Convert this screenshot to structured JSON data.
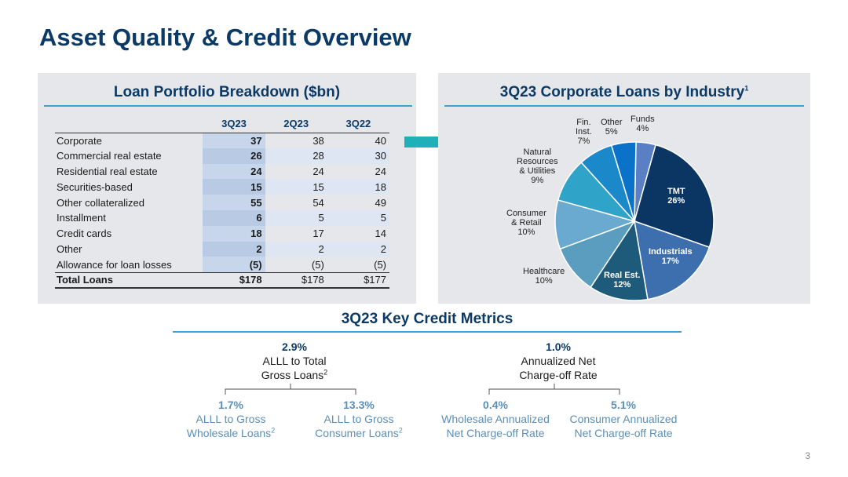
{
  "title": "Asset Quality & Credit Overview",
  "loans": {
    "title": "Loan Portfolio Breakdown ($bn)",
    "columns": [
      "3Q23",
      "2Q23",
      "3Q22"
    ],
    "rows": [
      {
        "label": "Corporate",
        "values": [
          "37",
          "38",
          "40"
        ]
      },
      {
        "label": "Commercial real estate",
        "values": [
          "26",
          "28",
          "30"
        ]
      },
      {
        "label": "Residential real estate",
        "values": [
          "24",
          "24",
          "24"
        ]
      },
      {
        "label": "Securities-based",
        "values": [
          "15",
          "15",
          "18"
        ]
      },
      {
        "label": "Other collateralized",
        "values": [
          "55",
          "54",
          "49"
        ]
      },
      {
        "label": "Installment",
        "values": [
          "6",
          "5",
          "5"
        ]
      },
      {
        "label": "Credit cards",
        "values": [
          "18",
          "17",
          "14"
        ]
      },
      {
        "label": "Other",
        "values": [
          "2",
          "2",
          "2"
        ]
      },
      {
        "label": "Allowance for loan losses",
        "values": [
          "(5)",
          "(5)",
          "(5)"
        ]
      },
      {
        "label": "Total Loans",
        "values": [
          "$178",
          "$178",
          "$177"
        ]
      }
    ]
  },
  "industry": {
    "title": "3Q23 Corporate Loans by Industry",
    "title_sup": "1"
  },
  "chart_data": {
    "type": "pie",
    "title": "3Q23 Corporate Loans by Industry",
    "slices": [
      {
        "label": "Funds",
        "value": 4,
        "color": "#5b7fc4"
      },
      {
        "label": "TMT",
        "value": 26,
        "color": "#0b3562"
      },
      {
        "label": "Industrials",
        "value": 17,
        "color": "#3d6faf"
      },
      {
        "label": "Real Est.",
        "value": 12,
        "color": "#1e5a7a"
      },
      {
        "label": "Healthcare",
        "value": 10,
        "color": "#5b9dbf"
      },
      {
        "label": "Consumer & Retail",
        "value": 10,
        "color": "#6aaad0"
      },
      {
        "label": "Natural Resources & Utilities",
        "value": 9,
        "color": "#2fa3c8"
      },
      {
        "label": "Fin. Inst.",
        "value": 7,
        "color": "#1b88c9"
      },
      {
        "label": "Other",
        "value": 5,
        "color": "#0a72c9"
      }
    ],
    "display_labels": {
      "funds": [
        "Funds",
        "4%"
      ],
      "tmt": [
        "TMT",
        "26%"
      ],
      "industrials": [
        "Industrials",
        "17%"
      ],
      "realest": [
        "Real Est.",
        "12%"
      ],
      "healthcare": [
        "Healthcare",
        "10%"
      ],
      "consumer": [
        "Consumer",
        "& Retail",
        "10%"
      ],
      "natural": [
        "Natural",
        "Resources",
        "& Utilities",
        "9%"
      ],
      "fin": [
        "Fin.",
        "Inst.",
        "7%"
      ],
      "other": [
        "Other",
        "5%"
      ]
    }
  },
  "metrics": {
    "title": "3Q23 Key Credit Metrics",
    "allll_total": {
      "value": "2.9%",
      "line1": "ALLL to Total",
      "line2": "Gross Loans",
      "sup": "2"
    },
    "nco": {
      "value": "1.0%",
      "line1": "Annualized Net",
      "line2": "Charge-off Rate"
    },
    "allll_wholesale": {
      "value": "1.7%",
      "line1": "ALLL to Gross",
      "line2": "Wholesale Loans",
      "sup": "2"
    },
    "allll_consumer": {
      "value": "13.3%",
      "line1": "ALLL to Gross",
      "line2": "Consumer Loans",
      "sup": "2"
    },
    "nco_wholesale": {
      "value": "0.4%",
      "line1": "Wholesale Annualized",
      "line2": "Net Charge-off Rate"
    },
    "nco_consumer": {
      "value": "5.1%",
      "line1": "Consumer Annualized",
      "line2": "Net Charge-off Rate"
    }
  },
  "page_number": "3"
}
